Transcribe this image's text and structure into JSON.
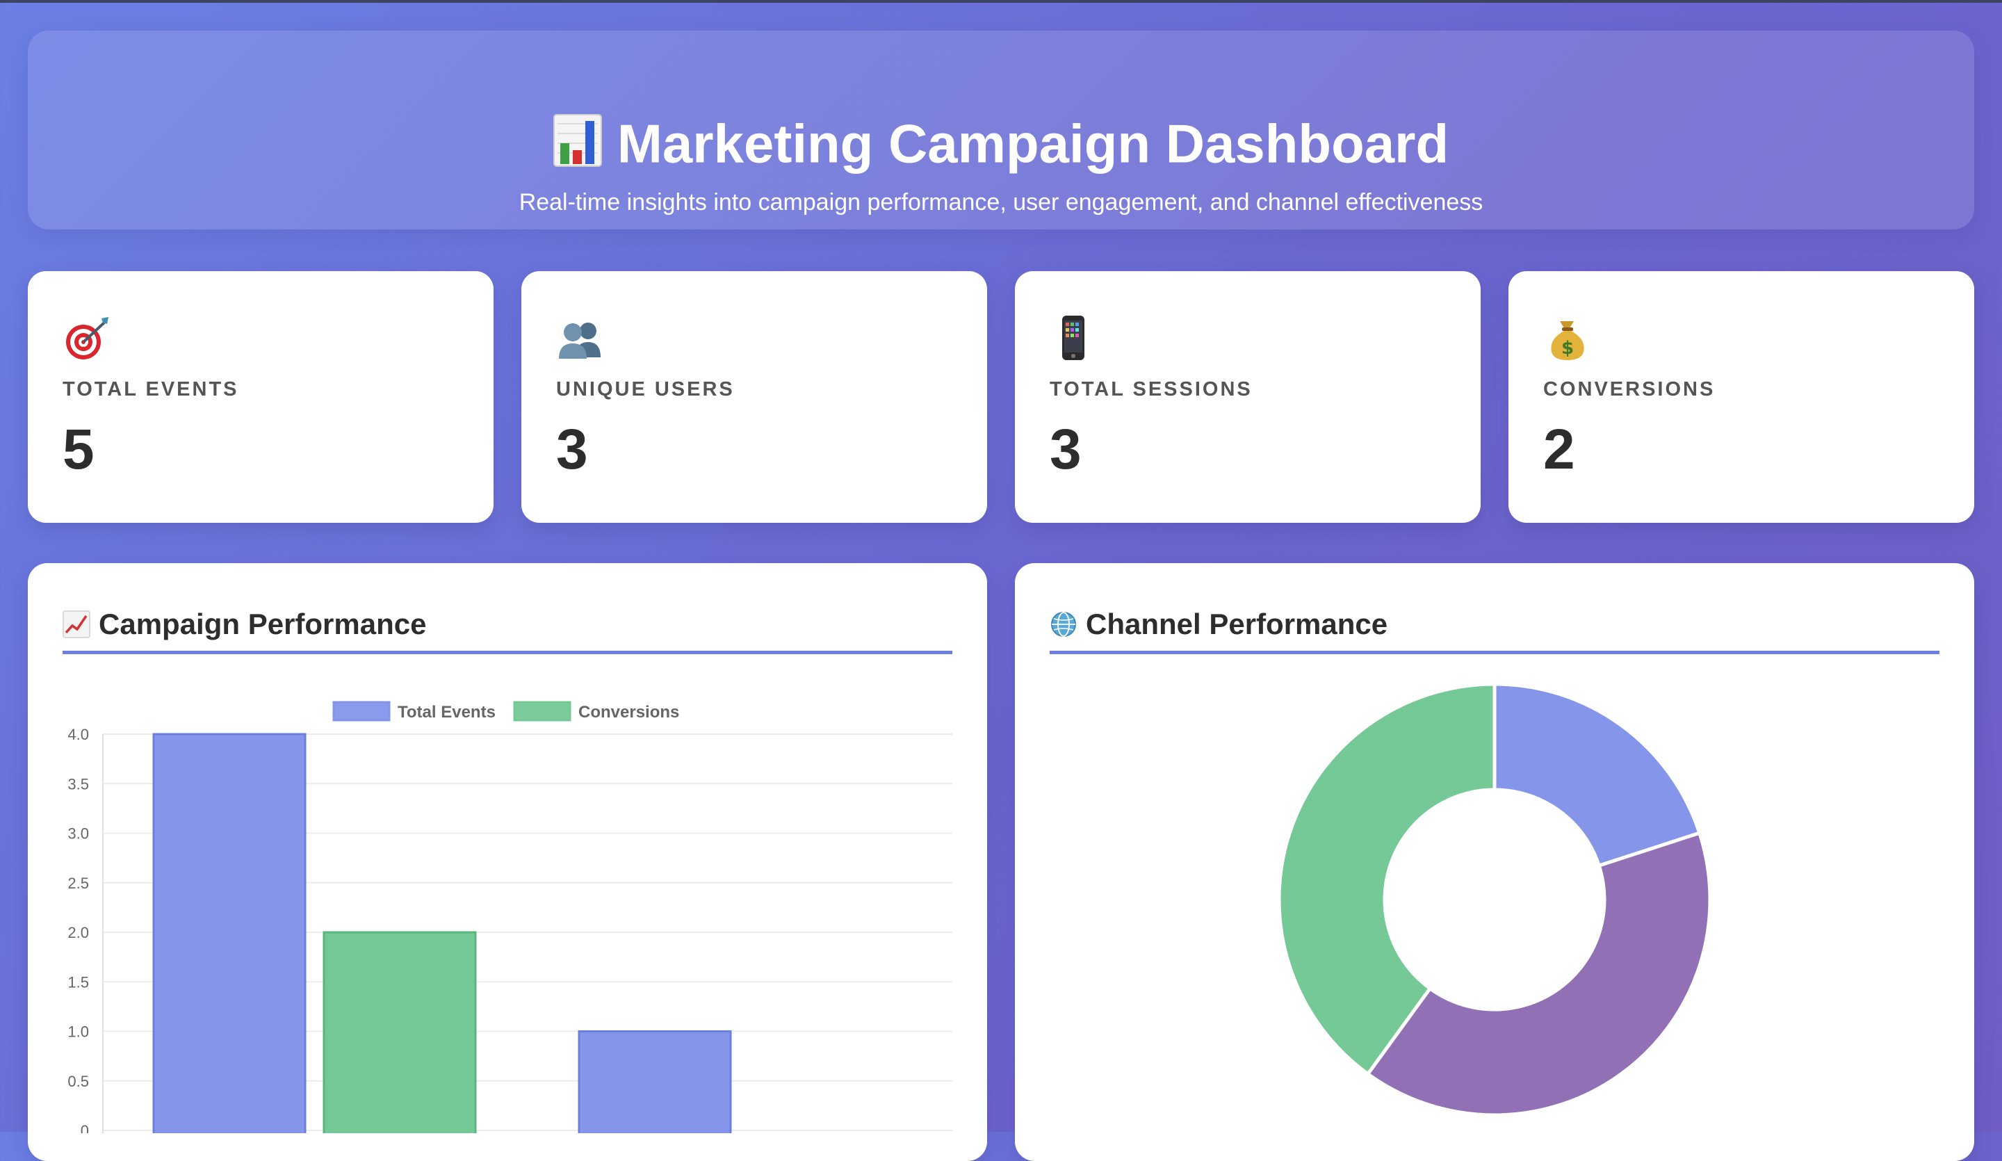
{
  "header": {
    "title": "Marketing Campaign Dashboard",
    "subtitle": "Real-time insights into campaign performance, user engagement, and channel effectiveness",
    "icon": "bar-chart-icon"
  },
  "stats": [
    {
      "icon": "target-icon",
      "label": "TOTAL EVENTS",
      "value": "5"
    },
    {
      "icon": "users-icon",
      "label": "UNIQUE USERS",
      "value": "3"
    },
    {
      "icon": "mobile-phone-icon",
      "label": "TOTAL SESSIONS",
      "value": "3"
    },
    {
      "icon": "money-bag-icon",
      "label": "CONVERSIONS",
      "value": "2"
    }
  ],
  "panels": {
    "campaign": {
      "title": "Campaign Performance",
      "icon": "chart-increasing-icon"
    },
    "channel": {
      "title": "Channel Performance",
      "icon": "globe-icon"
    }
  },
  "colors": {
    "accent": "#6d7ee0",
    "total_events": "#8596ea",
    "conversions": "#75c996",
    "purple": "#9170b5"
  },
  "chart_data": [
    {
      "type": "bar",
      "title": "",
      "legend_position": "top",
      "grid": true,
      "ylim": [
        0,
        4
      ],
      "y_ticks": [
        "4.0",
        "3.5",
        "3.0",
        "2.5",
        "2.0",
        "1.5",
        "1.0",
        "0.5",
        "0"
      ],
      "series": [
        {
          "name": "Total Events",
          "color": "#8596ea",
          "values": [
            4,
            1
          ]
        },
        {
          "name": "Conversions",
          "color": "#75c996",
          "values": [
            2,
            0
          ]
        }
      ]
    },
    {
      "type": "pie",
      "variant": "doughnut",
      "values": [
        1,
        2,
        2
      ],
      "colors": [
        "#8596ea",
        "#9170b5",
        "#75c996"
      ]
    }
  ]
}
